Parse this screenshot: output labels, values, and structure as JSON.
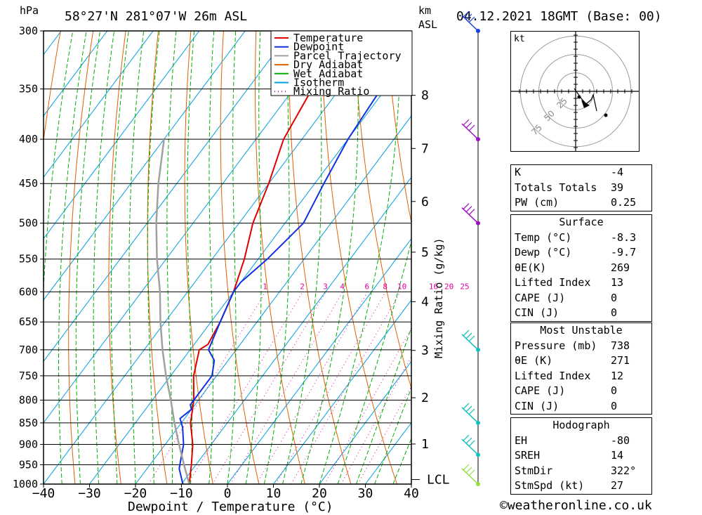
{
  "header": {
    "hpa_label": "hPa",
    "location": "58°27'N  281°07'W  26m  ASL",
    "km_label": "km",
    "asl_label": "ASL",
    "datetime": "04.12.2021  18GMT  (Base: 00)"
  },
  "chart_data": {
    "type": "line",
    "title": "58°27'N  281°07'W  26m  ASL",
    "xlabel": "Dewpoint / Temperature (°C)",
    "ylabel": "hPa",
    "right_label": "Mixing Ratio (g/kg)",
    "xlim": [
      -40,
      40
    ],
    "ylim": [
      1000,
      300
    ],
    "x_ticks": [
      "−40",
      "−30",
      "−20",
      "−10",
      "0",
      "10",
      "20",
      "30",
      "40"
    ],
    "pressure_levels": [
      300,
      350,
      400,
      450,
      500,
      550,
      600,
      650,
      700,
      750,
      800,
      850,
      900,
      950,
      1000
    ],
    "height_km_ticks": [
      "1",
      "2",
      "3",
      "4",
      "5",
      "6",
      "7",
      "8"
    ],
    "height_km_pressures": [
      899,
      795,
      701,
      616,
      540,
      472,
      410,
      356
    ],
    "lcl_label": "LCL",
    "lcl_pressure": 988,
    "mixing_ratio_labels": [
      "1",
      "2",
      "3",
      "4",
      "6",
      "8",
      "10",
      "16",
      "20",
      "25"
    ],
    "mixing_ratio_values": [
      1,
      2,
      3,
      4,
      6,
      8,
      10,
      16,
      20,
      25
    ],
    "legend": [
      "Temperature",
      "Dewpoint",
      "Parcel Trajectory",
      "Dry Adiabat",
      "Wet Adiabat",
      "Isotherm",
      "Mixing Ratio"
    ],
    "colors": {
      "temperature": "#e00000",
      "dewpoint": "#1030e0",
      "parcel": "#a0a0a0",
      "dry_adiabat": "#e06000",
      "wet_adiabat": "#00b000",
      "isotherm": "#00a0e0",
      "mixing_ratio": "#e000a0"
    },
    "series": [
      {
        "name": "Temperature",
        "points": [
          [
            1000,
            -8.3
          ],
          [
            950,
            -11
          ],
          [
            900,
            -14
          ],
          [
            850,
            -18
          ],
          [
            800,
            -21
          ],
          [
            750,
            -25
          ],
          [
            700,
            -28
          ],
          [
            690,
            -27
          ],
          [
            650,
            -28
          ],
          [
            600,
            -30
          ],
          [
            550,
            -33
          ],
          [
            500,
            -37
          ],
          [
            450,
            -40
          ],
          [
            400,
            -44
          ],
          [
            350,
            -46
          ],
          [
            310,
            -47
          ],
          [
            300,
            -46
          ]
        ]
      },
      {
        "name": "Dewpoint",
        "points": [
          [
            1000,
            -9.7
          ],
          [
            960,
            -13
          ],
          [
            940,
            -14
          ],
          [
            900,
            -16
          ],
          [
            860,
            -19
          ],
          [
            840,
            -21
          ],
          [
            820,
            -20
          ],
          [
            810,
            -21
          ],
          [
            750,
            -21
          ],
          [
            720,
            -23
          ],
          [
            700,
            -26
          ],
          [
            650,
            -28
          ],
          [
            600,
            -30
          ],
          [
            585,
            -30
          ],
          [
            550,
            -28
          ],
          [
            500,
            -26
          ],
          [
            450,
            -28
          ],
          [
            400,
            -30
          ],
          [
            350,
            -31
          ],
          [
            320,
            -31
          ],
          [
            300,
            -28
          ]
        ]
      },
      {
        "name": "Parcel Trajectory",
        "points": [
          [
            1000,
            -8.3
          ],
          [
            950,
            -12.6
          ],
          [
            900,
            -17
          ],
          [
            850,
            -21.5
          ],
          [
            800,
            -26
          ],
          [
            750,
            -31
          ],
          [
            700,
            -36
          ],
          [
            650,
            -41
          ],
          [
            600,
            -46
          ],
          [
            550,
            -52
          ],
          [
            500,
            -58
          ],
          [
            450,
            -64
          ],
          [
            400,
            -70
          ]
        ]
      }
    ]
  },
  "hodograph": {
    "unit": "kt",
    "ring_labels": [
      "25",
      "50",
      "75"
    ],
    "trace": [
      [
        -2,
        4
      ],
      [
        3,
        -3
      ],
      [
        8,
        -10
      ],
      [
        15,
        -18
      ],
      [
        22,
        -12
      ],
      [
        25,
        -5
      ],
      [
        30,
        -28
      ]
    ]
  },
  "table": {
    "top": [
      {
        "label": "K",
        "value": "-4"
      },
      {
        "label": "Totals Totals",
        "value": "39"
      },
      {
        "label": "PW (cm)",
        "value": "0.25"
      }
    ],
    "surface_title": "Surface",
    "surface": [
      {
        "label": "Temp (°C)",
        "value": "-8.3"
      },
      {
        "label": "Dewp (°C)",
        "value": "-9.7"
      },
      {
        "label": "θE(K)",
        "value": "269"
      },
      {
        "label": "Lifted Index",
        "value": "13"
      },
      {
        "label": "CAPE (J)",
        "value": "0"
      },
      {
        "label": "CIN (J)",
        "value": "0"
      }
    ],
    "mu_title": "Most Unstable",
    "most_unstable": [
      {
        "label": "Pressure (mb)",
        "value": "738"
      },
      {
        "label": "θE (K)",
        "value": "271"
      },
      {
        "label": "Lifted Index",
        "value": "12"
      },
      {
        "label": "CAPE (J)",
        "value": "0"
      },
      {
        "label": "CIN (J)",
        "value": "0"
      }
    ],
    "hodo_title": "Hodograph",
    "hodograph_stats": [
      {
        "label": "EH",
        "value": "-80"
      },
      {
        "label": "SREH",
        "value": "14"
      },
      {
        "label": "StmDir",
        "value": "322°"
      },
      {
        "label": "StmSpd (kt)",
        "value": "27"
      }
    ]
  },
  "wind_barbs": [
    {
      "p": 300,
      "color": "#1a3fe0"
    },
    {
      "p": 400,
      "color": "#9a10c0"
    },
    {
      "p": 500,
      "color": "#9a10c0"
    },
    {
      "p": 700,
      "color": "#10c0c0"
    },
    {
      "p": 850,
      "color": "#10c0c0"
    },
    {
      "p": 925,
      "color": "#10c0c0"
    },
    {
      "p": 1000,
      "color": "#90e040"
    }
  ],
  "copyright": "©weatheronline.co.uk"
}
